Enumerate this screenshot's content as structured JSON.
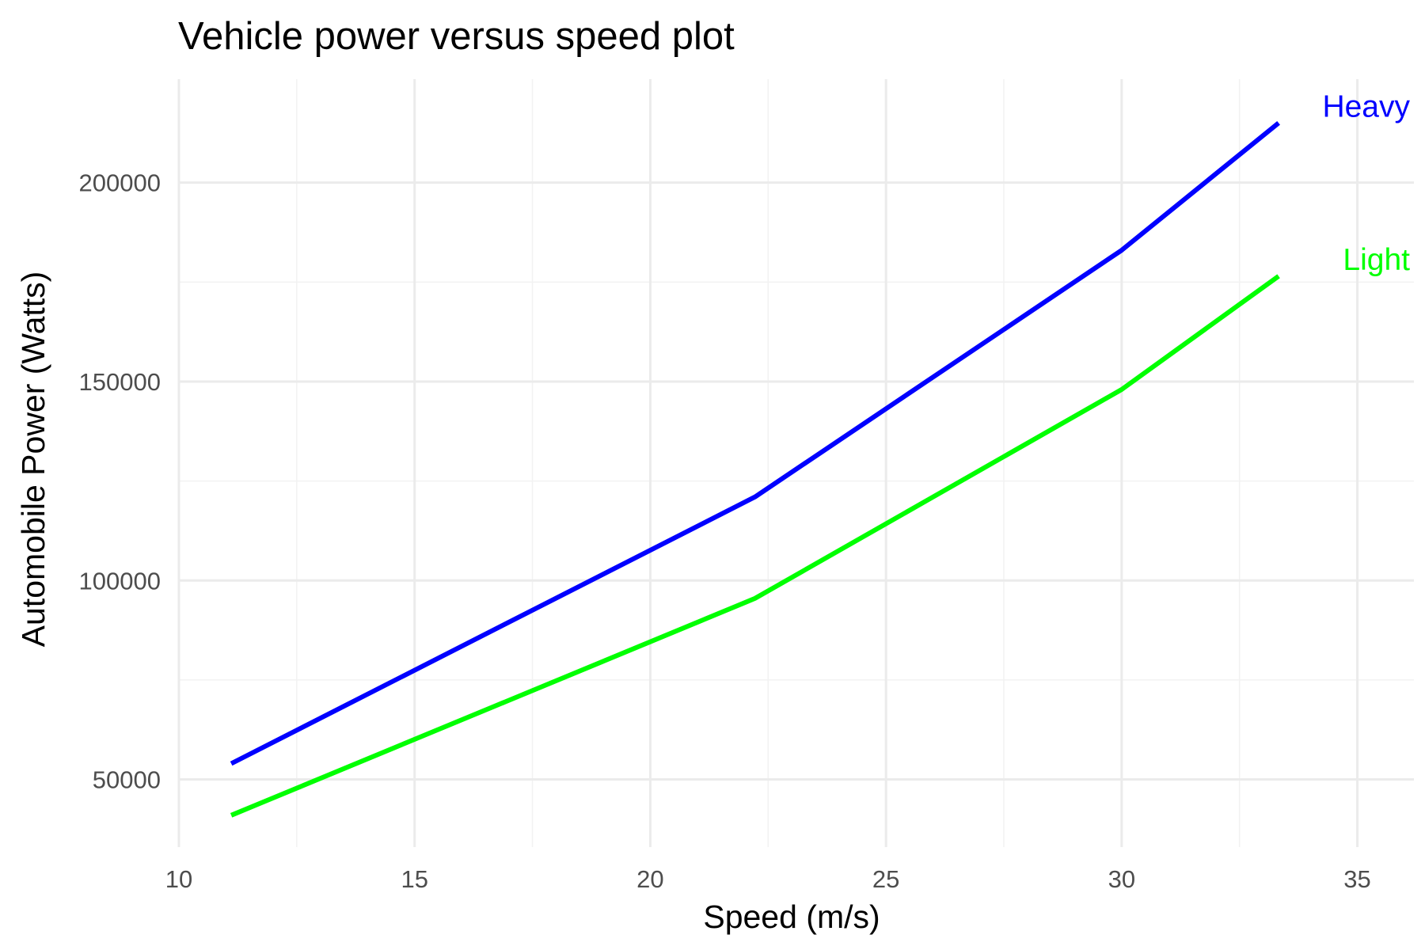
{
  "chart_data": {
    "type": "line",
    "title": "Vehicle power versus speed plot",
    "xlabel": "Speed (m/s)",
    "ylabel": "Automobile Power (Watts)",
    "xlim": [
      10,
      36.2
    ],
    "ylim": [
      33000,
      226000
    ],
    "x_major_ticks": [
      10,
      15,
      20,
      25,
      30,
      35
    ],
    "x_minor_ticks": [
      12.5,
      17.5,
      22.5,
      27.5,
      32.5
    ],
    "y_major_ticks": [
      50000,
      100000,
      150000,
      200000
    ],
    "y_minor_ticks": [
      75000,
      125000,
      175000
    ],
    "x_tick_labels": [
      "10",
      "15",
      "20",
      "25",
      "30",
      "35"
    ],
    "y_tick_labels": [
      "50000",
      "100000",
      "150000",
      "200000"
    ],
    "grid": true,
    "legend": "none",
    "series": [
      {
        "name": "Heavy",
        "color": "#0000ff",
        "x": [
          11.11,
          22.22,
          30.0,
          33.33
        ],
        "y": [
          54000,
          121000,
          183000,
          215000
        ]
      },
      {
        "name": "Light",
        "color": "#00ff00",
        "x": [
          11.11,
          22.22,
          30.0,
          33.33
        ],
        "y": [
          41000,
          95500,
          148000,
          176500
        ]
      }
    ]
  }
}
